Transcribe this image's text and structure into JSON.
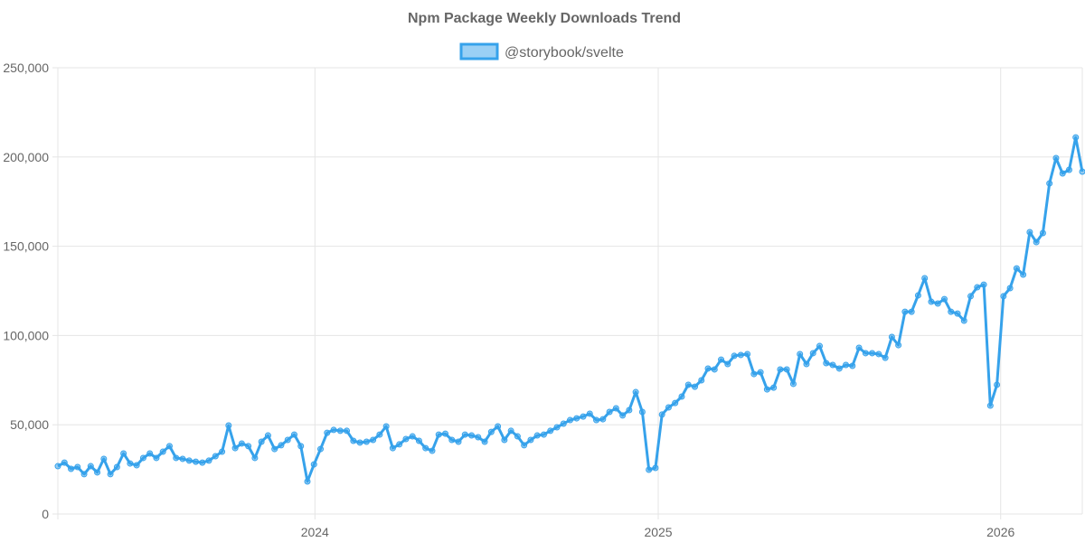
{
  "chart_data": {
    "type": "line",
    "title": "Npm Package Weekly Downloads Trend",
    "xlabel": "",
    "ylabel": "",
    "legend_position": "top",
    "grid": true,
    "ylim": [
      0,
      250000
    ],
    "y_ticks": [
      "0",
      "50,000",
      "100,000",
      "150,000",
      "200,000",
      "250,000"
    ],
    "x_ticks": [
      {
        "label": "2024",
        "date": "2024-01-01"
      },
      {
        "label": "2025",
        "date": "2025-01-01"
      },
      {
        "label": "2026",
        "date": "2026-01-01"
      }
    ],
    "colors": {
      "line": "#36a2eb",
      "fill": "#9ad0f5",
      "grid": "#e5e5e5",
      "text": "#666666"
    },
    "x": [
      "2023-04-02",
      "2023-04-09",
      "2023-04-16",
      "2023-04-23",
      "2023-04-30",
      "2023-05-07",
      "2023-05-14",
      "2023-05-21",
      "2023-05-28",
      "2023-06-04",
      "2023-06-11",
      "2023-06-18",
      "2023-06-25",
      "2023-07-02",
      "2023-07-09",
      "2023-07-16",
      "2023-07-23",
      "2023-07-30",
      "2023-08-06",
      "2023-08-13",
      "2023-08-20",
      "2023-08-27",
      "2023-09-03",
      "2023-09-10",
      "2023-09-17",
      "2023-09-24",
      "2023-10-01",
      "2023-10-08",
      "2023-10-15",
      "2023-10-22",
      "2023-10-29",
      "2023-11-05",
      "2023-11-12",
      "2023-11-19",
      "2023-11-26",
      "2023-12-03",
      "2023-12-10",
      "2023-12-17",
      "2023-12-24",
      "2023-12-31",
      "2024-01-07",
      "2024-01-14",
      "2024-01-21",
      "2024-01-28",
      "2024-02-04",
      "2024-02-11",
      "2024-02-18",
      "2024-02-25",
      "2024-03-03",
      "2024-03-10",
      "2024-03-17",
      "2024-03-24",
      "2024-03-31",
      "2024-04-07",
      "2024-04-14",
      "2024-04-21",
      "2024-04-28",
      "2024-05-05",
      "2024-05-12",
      "2024-05-19",
      "2024-05-26",
      "2024-06-02",
      "2024-06-09",
      "2024-06-16",
      "2024-06-23",
      "2024-06-30",
      "2024-07-07",
      "2024-07-14",
      "2024-07-21",
      "2024-07-28",
      "2024-08-04",
      "2024-08-11",
      "2024-08-18",
      "2024-08-25",
      "2024-09-01",
      "2024-09-08",
      "2024-09-15",
      "2024-09-22",
      "2024-09-29",
      "2024-10-06",
      "2024-10-13",
      "2024-10-20",
      "2024-10-27",
      "2024-11-03",
      "2024-11-10",
      "2024-11-17",
      "2024-11-24",
      "2024-12-01",
      "2024-12-08",
      "2024-12-15",
      "2024-12-22",
      "2024-12-29",
      "2025-01-05",
      "2025-01-12",
      "2025-01-19",
      "2025-01-26",
      "2025-02-02",
      "2025-02-09",
      "2025-02-16",
      "2025-02-23",
      "2025-03-02",
      "2025-03-09",
      "2025-03-16",
      "2025-03-23",
      "2025-03-30",
      "2025-04-06",
      "2025-04-13",
      "2025-04-20",
      "2025-04-27",
      "2025-05-04",
      "2025-05-11",
      "2025-05-18",
      "2025-05-25",
      "2025-06-01",
      "2025-06-08",
      "2025-06-15",
      "2025-06-22",
      "2025-06-29",
      "2025-07-06",
      "2025-07-13",
      "2025-07-20",
      "2025-07-27",
      "2025-08-03",
      "2025-08-10",
      "2025-08-17",
      "2025-08-24",
      "2025-08-31",
      "2025-09-07",
      "2025-09-14",
      "2025-09-21",
      "2025-09-28",
      "2025-10-05",
      "2025-10-12",
      "2025-10-19",
      "2025-10-26",
      "2025-11-02",
      "2025-11-09",
      "2025-11-16",
      "2025-11-23",
      "2025-11-30",
      "2025-12-07",
      "2025-12-14",
      "2025-12-21",
      "2025-12-28",
      "2026-01-04",
      "2026-01-11",
      "2026-01-18",
      "2026-01-25",
      "2026-02-01",
      "2026-02-08",
      "2026-02-15",
      "2026-02-22",
      "2026-03-01",
      "2026-03-08",
      "2026-03-15",
      "2026-03-22",
      "2026-03-29"
    ],
    "series": [
      {
        "name": "@storybook/svelte",
        "values": [
          26800,
          28800,
          25300,
          26300,
          22300,
          26800,
          23300,
          30900,
          22300,
          26300,
          33900,
          28300,
          27300,
          31400,
          33900,
          31400,
          34900,
          38000,
          31400,
          30900,
          29900,
          29300,
          28800,
          29900,
          32400,
          34900,
          49600,
          36900,
          39500,
          38000,
          31400,
          40500,
          44000,
          36400,
          38500,
          41500,
          44500,
          38000,
          18200,
          27800,
          36400,
          45500,
          47100,
          46600,
          46600,
          41000,
          40000,
          40500,
          41500,
          44500,
          49100,
          36900,
          39000,
          42000,
          43500,
          41000,
          36900,
          35400,
          44500,
          45000,
          41500,
          40500,
          44500,
          44000,
          43000,
          40500,
          46000,
          49100,
          41500,
          46600,
          43500,
          38500,
          41500,
          44000,
          44500,
          46600,
          48600,
          50600,
          52600,
          53600,
          54600,
          56200,
          52600,
          53100,
          57200,
          59200,
          55200,
          58200,
          68300,
          57200,
          24800,
          25800,
          55700,
          59700,
          62200,
          65800,
          72400,
          71300,
          74900,
          81500,
          81000,
          86500,
          84000,
          88600,
          89100,
          89600,
          78400,
          79400,
          69800,
          70800,
          81000,
          81000,
          72900,
          89600,
          84000,
          90100,
          94100,
          84500,
          83500,
          81500,
          83500,
          83000,
          93100,
          90100,
          90100,
          89600,
          87500,
          99200,
          94600,
          113300,
          113300,
          122500,
          132100,
          118900,
          117900,
          120400,
          113300,
          112300,
          108300,
          122000,
          127000,
          128500,
          60700,
          72400,
          122000,
          126500,
          137600,
          134100,
          157900,
          152300,
          157400,
          185200,
          199400,
          190800,
          192800,
          211000,
          191800
        ]
      }
    ]
  }
}
